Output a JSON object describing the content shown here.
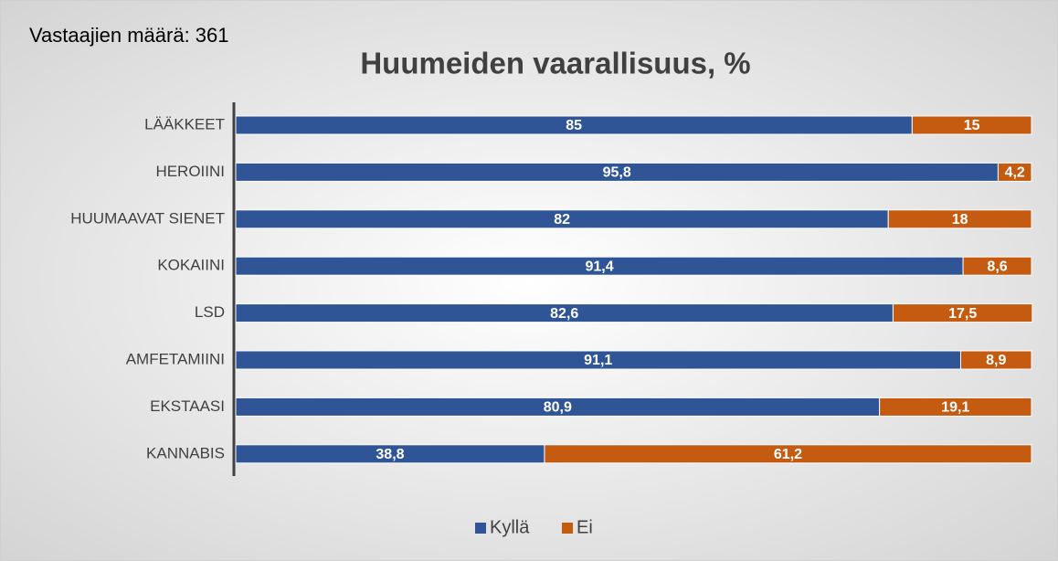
{
  "chart_data": {
    "type": "stacked_barh",
    "title": "Huumeiden vaarallisuus, %",
    "subtitle": "Vastaajien määrä: 361",
    "categories": [
      "LÄÄKKEET",
      "HEROIINI",
      "HUUMAAVAT SIENET",
      "KOKAIINI",
      "LSD",
      "AMFETAMIINI",
      "EKSTAASI",
      "KANNABIS"
    ],
    "series": [
      {
        "name": "Kyllä",
        "color": "#2f5597",
        "values": [
          85,
          95.8,
          82,
          91.4,
          82.6,
          91.1,
          80.9,
          38.8
        ],
        "value_labels": [
          "85",
          "95,8",
          "82",
          "91,4",
          "82,6",
          "91,1",
          "80,9",
          "38,8"
        ]
      },
      {
        "name": "Ei",
        "color": "#c55a11",
        "values": [
          15,
          4.2,
          18,
          8.6,
          17.5,
          8.9,
          19.1,
          61.2
        ],
        "value_labels": [
          "15",
          "4,2",
          "18",
          "8,6",
          "17,5",
          "8,9",
          "19,1",
          "61,2"
        ]
      }
    ],
    "xlim": [
      0,
      100
    ],
    "legend": "bottom"
  }
}
